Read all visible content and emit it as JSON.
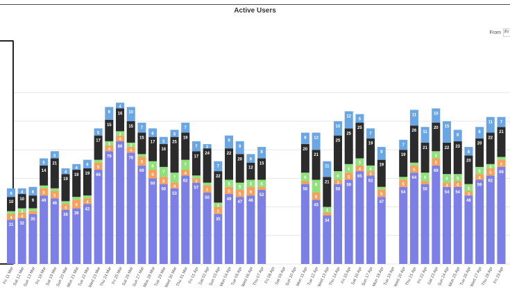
{
  "title": "Active Users",
  "range_selector": {
    "label": "From",
    "value": "Fr"
  },
  "colors": {
    "purple": "#7b7fe6",
    "orange": "#f6a05a",
    "green": "#90e07c",
    "black": "#2b2b2b",
    "blue": "#6aa6e3",
    "grid": "#e6e6e6"
  },
  "chart_data": {
    "type": "bar",
    "stacked": true,
    "title": "Active Users",
    "xlabel": "",
    "ylabel": "",
    "ylim": [
      0,
      130
    ],
    "grid": true,
    "legend": "none",
    "categories": [
      "Fri 11 Mar",
      "Sat 12 Mar",
      "Sun 13 Mar",
      "Fri 18 Mar",
      "Sat 19 Mar",
      "Sun 20 Mar",
      "Mon 21 Mar",
      "Tue 22 Mar",
      "Wed 23 Mar",
      "Thu 24 Mar",
      "Fri 25 Mar",
      "Sat 26 Mar",
      "Sun 27 Mar",
      "Mon 28 Mar",
      "Tue 29 Mar",
      "Wed 30 Mar",
      "Thu 31 Mar",
      "Fri 01 Apr",
      "Sat 02 Apr",
      "Sun 03 Apr",
      "Mon 04 Apr",
      "Tue 05 Apr",
      "Wed 06 Apr",
      "Thu 07 Apr",
      "Fri 08 Apr",
      "Sat 09 Apr",
      "Sun 10 Apr",
      "Mon 11 Apr",
      "Tue 12 Apr",
      "Wed 13 Apr",
      "Thu 14 Apr",
      "Fri 15 Apr",
      "Sat 16 Apr",
      "Sun 17 Apr",
      "Mon 18 Apr",
      "Tue 19 Apr",
      "Wed 20 Apr",
      "Thu 21 Apr",
      "Fri 22 Apr",
      "Sat 23 Apr",
      "Sun 24 Apr",
      "Mon 25 Apr",
      "Tue 26 Apr",
      "Wed 27 Apr",
      "Thu 28 Apr",
      "Fri 29 Apr"
    ],
    "series": [
      {
        "color": "purple",
        "values": [
          31,
          32,
          35,
          48,
          46,
          38,
          39,
          42,
          66,
          79,
          86,
          78,
          69,
          60,
          56,
          53,
          62,
          57,
          50,
          35,
          49,
          47,
          48,
          52,
          null,
          null,
          null,
          56,
          45,
          34,
          56,
          59,
          65,
          62,
          47,
          null,
          54,
          64,
          56,
          69,
          54,
          54,
          48,
          59,
          62,
          68
        ]
      },
      {
        "color": "orange",
        "values": [
          4,
          4,
          2,
          5,
          5,
          4,
          6,
          4,
          5,
          4,
          4,
          4,
          6,
          6,
          5,
          4,
          4,
          3,
          5,
          5,
          5,
          5,
          6,
          2,
          null,
          null,
          null,
          2,
          5,
          2,
          3,
          5,
          4,
          3,
          5,
          null,
          5,
          5,
          2,
          5,
          3,
          4,
          3,
          4,
          5,
          5
        ]
      },
      {
        "color": "green",
        "values": [
          2,
          3,
          2,
          2,
          2,
          2,
          2,
          2,
          2,
          3,
          3,
          3,
          2,
          6,
          7,
          7,
          7,
          2,
          2,
          3,
          5,
          5,
          5,
          5,
          null,
          null,
          null,
          6,
          9,
          4,
          6,
          6,
          5,
          4,
          2,
          null,
          2,
          2,
          6,
          5,
          6,
          5,
          5,
          5,
          3,
          2
        ]
      },
      {
        "color": "black",
        "values": [
          10,
          10,
          9,
          14,
          21,
          19,
          19,
          19,
          17,
          15,
          16,
          15,
          15,
          17,
          16,
          25,
          19,
          17,
          24,
          22,
          22,
          20,
          12,
          15,
          null,
          null,
          null,
          20,
          21,
          21,
          25,
          25,
          25,
          19,
          19,
          null,
          19,
          26,
          21,
          20,
          22,
          23,
          20,
          20,
          22,
          21
        ]
      },
      {
        "color": "blue",
        "values": [
          6,
          4,
          6,
          5,
          5,
          4,
          4,
          6,
          5,
          9,
          4,
          10,
          7,
          6,
          5,
          5,
          7,
          7,
          3,
          7,
          9,
          9,
          6,
          8,
          null,
          null,
          null,
          8,
          12,
          11,
          10,
          12,
          6,
          7,
          9,
          null,
          7,
          11,
          11,
          10,
          15,
          8,
          6,
          8,
          11,
          7
        ]
      }
    ]
  }
}
